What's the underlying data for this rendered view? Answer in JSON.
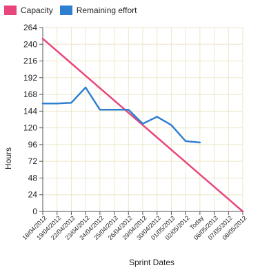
{
  "chart_data": {
    "type": "line",
    "x": [
      "18/04/2012",
      "19/04/2012",
      "22/04/2012",
      "23/04/2012",
      "24/04/2012",
      "25/04/2012",
      "26/04/2012",
      "29/04/2012",
      "30/04/2012",
      "01/05/2012",
      "02/05/2012",
      "Today",
      "06/05/2012",
      "07/05/2012",
      "08/05/2012"
    ],
    "series": [
      {
        "name": "Capacity",
        "color": "#e8457c",
        "values": [
          248,
          230.3,
          212.6,
          194.9,
          177.1,
          159.4,
          141.7,
          124,
          106.3,
          88.6,
          70.9,
          53.1,
          35.4,
          17.7,
          0
        ]
      },
      {
        "name": "Remaining effort",
        "color": "#2f7fd0",
        "values": [
          155,
          155,
          156,
          178,
          146,
          146,
          146,
          126,
          136,
          124,
          101,
          99,
          null,
          null,
          null
        ]
      }
    ],
    "xlabel": "Sprint Dates",
    "ylabel": "Hours",
    "ylim": [
      0,
      264
    ],
    "yticks": [
      0,
      24,
      48,
      72,
      96,
      120,
      144,
      168,
      192,
      216,
      240,
      264
    ],
    "grid": true,
    "legend_position": "top-left"
  }
}
